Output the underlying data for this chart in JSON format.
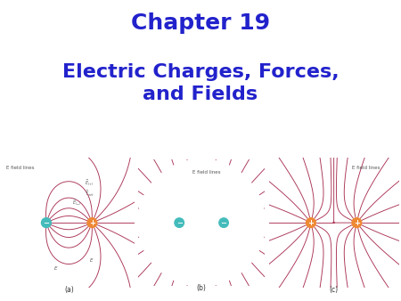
{
  "title1": "Chapter 19",
  "title2": "Electric Charges, Forces,\nand Fields",
  "title1_color": "#2222CC",
  "title2_color": "#2222CC",
  "bg_color": "#FFFFFF",
  "diagram_labels": [
    "(a)",
    "(b)",
    "(c)"
  ],
  "field_line_color": "#AA3355",
  "charge_pos_color": "#EE8833",
  "charge_neg_color": "#44BBBB",
  "title1_fontsize": 18,
  "title2_fontsize": 16
}
